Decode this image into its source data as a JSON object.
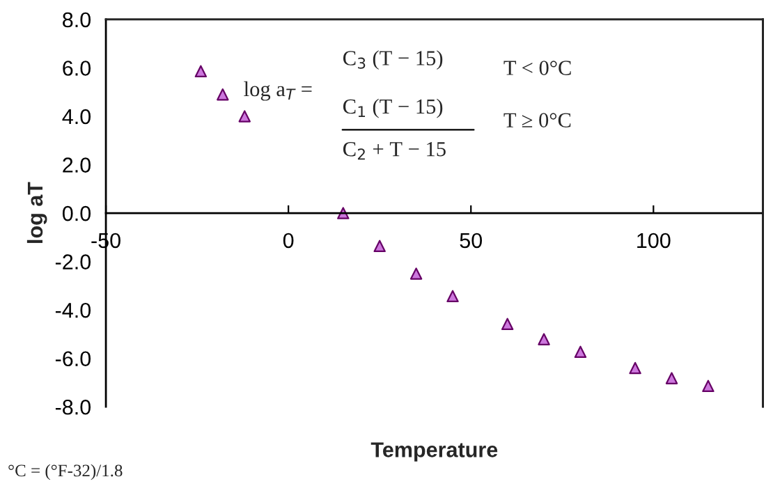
{
  "chart_data": {
    "type": "scatter",
    "xlabel": "Temperature",
    "ylabel": "log aT",
    "x": [
      -24,
      -18,
      -12,
      15,
      25,
      35,
      45,
      60,
      70,
      80,
      95,
      105,
      115
    ],
    "series": [
      {
        "color": "#cc77dd",
        "values": [
          5.86,
          4.9,
          4.0,
          0.0,
          -1.36,
          -2.5,
          -3.43,
          -4.58,
          -5.21,
          -5.73,
          -6.4,
          -6.82,
          -7.14
        ]
      }
    ],
    "marker": "triangle",
    "xlim": [
      -50,
      130
    ],
    "xticks": [
      -50,
      0,
      50,
      100
    ],
    "ylim": [
      -8,
      8
    ],
    "yticks": [
      {
        "value": 8,
        "label": "8.0"
      },
      {
        "value": 6,
        "label": "6.0"
      },
      {
        "value": 4,
        "label": "4.0"
      },
      {
        "value": 2,
        "label": "2.0"
      },
      {
        "value": 0,
        "label": "0.0"
      },
      {
        "value": -2,
        "label": "-2.0"
      },
      {
        "value": -4,
        "label": "-4.0"
      },
      {
        "value": -6,
        "label": "-6.0"
      },
      {
        "value": -8,
        "label": "-8.0"
      }
    ],
    "grid": false,
    "annotations": [
      "log a$_{T}$ =",
      "C$_{3}$ (T − 15)",
      "C$_{1}$ (T − 15)",
      "C$_{2}$ + T − 15",
      "T < 0°C",
      "T ≥ 0°C",
      "°C = (°F-32)/1.8"
    ]
  }
}
